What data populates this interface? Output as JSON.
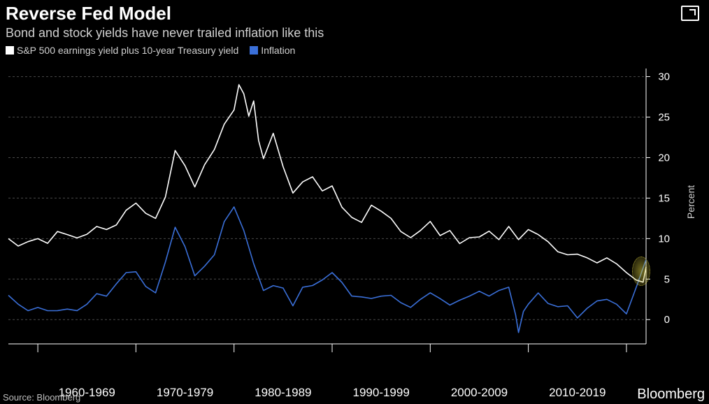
{
  "header": {
    "title": "Reverse Fed Model",
    "subtitle": "Bond and stock yields have never trailed inflation like this"
  },
  "legend": {
    "series1": {
      "label": "S&P 500 earnings yield plus 10-year Treasury yield",
      "color": "#ffffff"
    },
    "series2": {
      "label": "Inflation",
      "color": "#3a6fd8"
    }
  },
  "chart": {
    "type": "line",
    "background_color": "#000000",
    "grid_color": "#4a4a4a",
    "tick_color": "#ffffff",
    "axis_fontsize": 15,
    "ylim": [
      -3,
      31
    ],
    "yticks": [
      0,
      5,
      10,
      15,
      20,
      25,
      30
    ],
    "ylabel": "Percent",
    "x_start_year": 1957,
    "x_end_year": 2022,
    "x_decade_labels": [
      "1960-1969",
      "1970-1979",
      "1980-1989",
      "1990-1999",
      "2000-2009",
      "2010-2019"
    ],
    "x_decade_centers": [
      1965,
      1975,
      1985,
      1995,
      2005,
      2015
    ],
    "x_decade_ticks": [
      1960,
      1970,
      1980,
      1990,
      2000,
      2010,
      2020
    ],
    "highlight": {
      "year": 2021.5,
      "y": 6
    },
    "series1_color": "#ffffff",
    "series1_width": 1.6,
    "series1_data": [
      [
        1957,
        10
      ],
      [
        1958,
        9.2
      ],
      [
        1959,
        9.5
      ],
      [
        1960,
        10
      ],
      [
        1961,
        9.3
      ],
      [
        1962,
        11
      ],
      [
        1963,
        10.5
      ],
      [
        1964,
        10.2
      ],
      [
        1965,
        10.4
      ],
      [
        1966,
        11.5
      ],
      [
        1967,
        11
      ],
      [
        1968,
        11.8
      ],
      [
        1969,
        13.5
      ],
      [
        1970,
        14.5
      ],
      [
        1971,
        13
      ],
      [
        1972,
        12.5
      ],
      [
        1973,
        15
      ],
      [
        1974,
        21
      ],
      [
        1975,
        19
      ],
      [
        1976,
        16.5
      ],
      [
        1977,
        19
      ],
      [
        1978,
        21
      ],
      [
        1979,
        24
      ],
      [
        1980,
        26
      ],
      [
        1980.5,
        29
      ],
      [
        1981,
        28
      ],
      [
        1981.5,
        25
      ],
      [
        1982,
        27
      ],
      [
        1982.5,
        22
      ],
      [
        1983,
        20
      ],
      [
        1984,
        23
      ],
      [
        1985,
        19
      ],
      [
        1986,
        15.5
      ],
      [
        1987,
        17
      ],
      [
        1988,
        17.5
      ],
      [
        1989,
        16
      ],
      [
        1990,
        16.5
      ],
      [
        1991,
        14
      ],
      [
        1992,
        12.5
      ],
      [
        1993,
        12
      ],
      [
        1994,
        14
      ],
      [
        1995,
        13.5
      ],
      [
        1996,
        12.5
      ],
      [
        1997,
        11
      ],
      [
        1998,
        10
      ],
      [
        1999,
        11
      ],
      [
        2000,
        12
      ],
      [
        2001,
        10.5
      ],
      [
        2002,
        11
      ],
      [
        2003,
        9.5
      ],
      [
        2004,
        10
      ],
      [
        2005,
        10.2
      ],
      [
        2006,
        10.8
      ],
      [
        2007,
        10
      ],
      [
        2008,
        11.5
      ],
      [
        2009,
        10
      ],
      [
        2010,
        11
      ],
      [
        2011,
        10.5
      ],
      [
        2012,
        9.5
      ],
      [
        2013,
        8.5
      ],
      [
        2014,
        8
      ],
      [
        2015,
        8.2
      ],
      [
        2016,
        7.5
      ],
      [
        2017,
        7
      ],
      [
        2018,
        7.5
      ],
      [
        2019,
        7
      ],
      [
        2020,
        5.8
      ],
      [
        2021,
        5
      ],
      [
        2021.7,
        4.5
      ],
      [
        2022,
        6.5
      ]
    ],
    "series2_color": "#3a6fd8",
    "series2_width": 1.6,
    "series2_data": [
      [
        1957,
        3
      ],
      [
        1958,
        2
      ],
      [
        1959,
        1
      ],
      [
        1960,
        1.5
      ],
      [
        1961,
        1
      ],
      [
        1962,
        1.2
      ],
      [
        1963,
        1.3
      ],
      [
        1964,
        1.2
      ],
      [
        1965,
        1.8
      ],
      [
        1966,
        3.2
      ],
      [
        1967,
        2.8
      ],
      [
        1968,
        4.5
      ],
      [
        1969,
        5.8
      ],
      [
        1970,
        6
      ],
      [
        1971,
        4
      ],
      [
        1972,
        3.3
      ],
      [
        1973,
        7
      ],
      [
        1974,
        11.5
      ],
      [
        1975,
        9
      ],
      [
        1976,
        5.5
      ],
      [
        1977,
        6.5
      ],
      [
        1978,
        8
      ],
      [
        1979,
        12
      ],
      [
        1980,
        14
      ],
      [
        1981,
        11
      ],
      [
        1982,
        7
      ],
      [
        1983,
        3.5
      ],
      [
        1984,
        4.2
      ],
      [
        1985,
        3.8
      ],
      [
        1986,
        1.8
      ],
      [
        1987,
        4
      ],
      [
        1988,
        4.3
      ],
      [
        1989,
        4.8
      ],
      [
        1990,
        5.8
      ],
      [
        1991,
        4.5
      ],
      [
        1992,
        3
      ],
      [
        1993,
        2.8
      ],
      [
        1994,
        2.7
      ],
      [
        1995,
        2.8
      ],
      [
        1996,
        3
      ],
      [
        1997,
        2
      ],
      [
        1998,
        1.6
      ],
      [
        1999,
        2.5
      ],
      [
        2000,
        3.4
      ],
      [
        2001,
        2.5
      ],
      [
        2002,
        1.8
      ],
      [
        2003,
        2.3
      ],
      [
        2004,
        3
      ],
      [
        2005,
        3.5
      ],
      [
        2006,
        3
      ],
      [
        2007,
        3.5
      ],
      [
        2008,
        4
      ],
      [
        2008.7,
        0.5
      ],
      [
        2009,
        -1.5
      ],
      [
        2009.5,
        1
      ],
      [
        2010,
        2
      ],
      [
        2011,
        3.2
      ],
      [
        2012,
        2
      ],
      [
        2013,
        1.5
      ],
      [
        2014,
        1.8
      ],
      [
        2015,
        0.2
      ],
      [
        2016,
        1.5
      ],
      [
        2017,
        2.2
      ],
      [
        2018,
        2.5
      ],
      [
        2019,
        1.8
      ],
      [
        2020,
        0.8
      ],
      [
        2021,
        4
      ],
      [
        2022,
        7.5
      ]
    ]
  },
  "footer": {
    "source": "Source: Bloomberg",
    "brand": "Bloomberg"
  }
}
